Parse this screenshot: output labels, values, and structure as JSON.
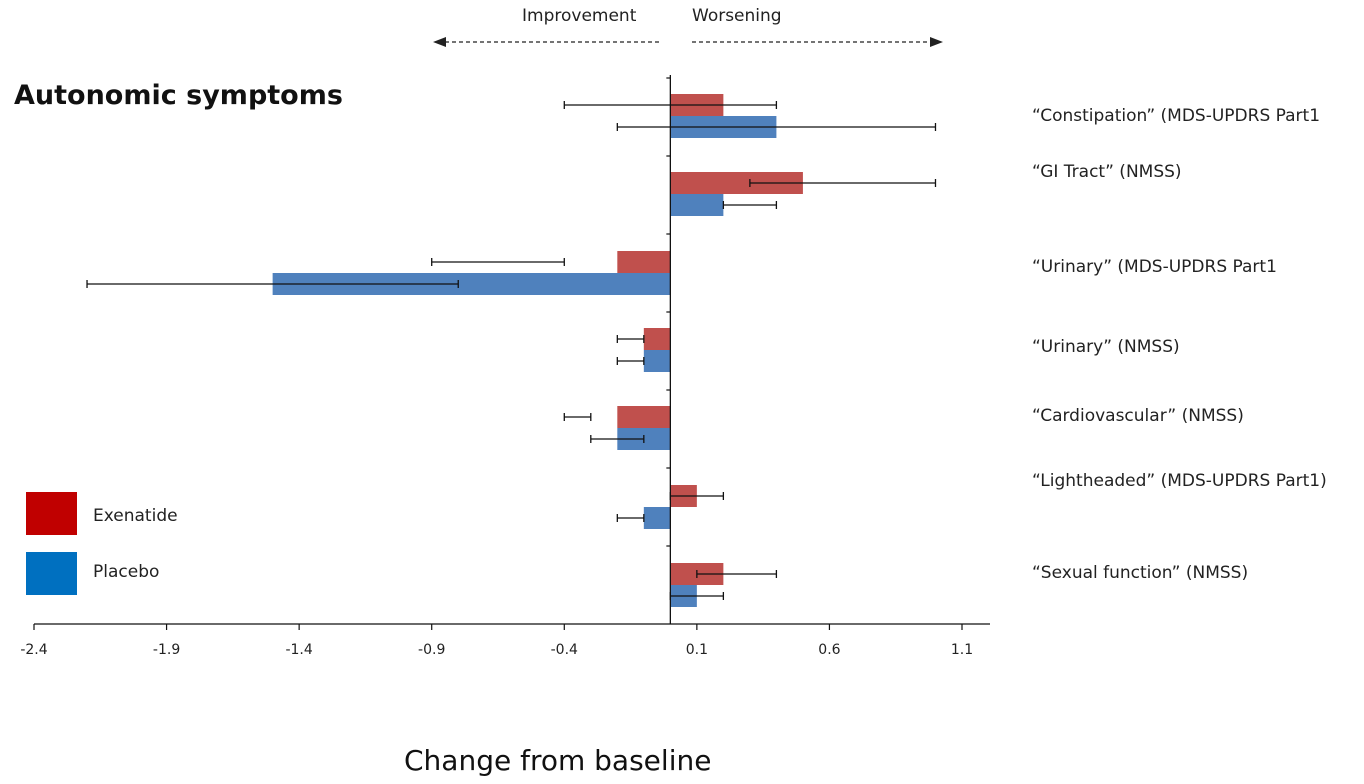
{
  "chart_data": {
    "type": "bar",
    "orientation": "horizontal",
    "title": "Autonomic symptoms",
    "xlabel": "Change from baseline",
    "direction_labels": {
      "left": "Improvement",
      "right": "Worsening"
    },
    "xlim": [
      -2.4,
      1.2
    ],
    "xticks": [
      -2.4,
      -1.9,
      -1.4,
      -0.9,
      -0.4,
      0.1,
      0.6,
      1.1
    ],
    "tick_labels": [
      "-2.4",
      "-1.9",
      "-1.4",
      "-0.9",
      "-0.4",
      "0.1",
      "0.6",
      "1.1"
    ],
    "categories": [
      "“Constipation” (MDS-UPDRS Part1",
      "“GI Tract” (NMSS)",
      "“Urinary” (MDS-UPDRS Part1",
      "“Urinary” (NMSS)",
      "“Cardiovascular” (NMSS)",
      "“Lightheaded” (MDS-UPDRS Part1)",
      "“Sexual function” (NMSS)"
    ],
    "series": [
      {
        "name": "Exenatide",
        "color": "#c0504d",
        "values": [
          0.2,
          0.5,
          -0.2,
          -0.1,
          -0.2,
          0.1,
          0.2
        ],
        "error_low": [
          -0.4,
          0.3,
          -0.9,
          -0.2,
          -0.4,
          0.0,
          0.1
        ],
        "error_high": [
          0.4,
          1.0,
          -0.4,
          -0.1,
          -0.3,
          0.2,
          0.4
        ]
      },
      {
        "name": "Placebo",
        "color": "#4f81bd",
        "values": [
          0.4,
          0.2,
          -1.5,
          -0.1,
          -0.2,
          -0.1,
          0.1
        ],
        "error_low": [
          -0.2,
          0.2,
          -2.2,
          -0.2,
          -0.3,
          -0.2,
          0.0
        ],
        "error_high": [
          1.0,
          0.4,
          -0.8,
          -0.1,
          -0.1,
          -0.1,
          0.2
        ]
      }
    ],
    "legend": {
      "placement": "bottom-left",
      "items": [
        {
          "label": "Exenatide",
          "color": "#c00000"
        },
        {
          "label": "Placebo",
          "color": "#0070c0"
        }
      ]
    },
    "grid": false
  }
}
